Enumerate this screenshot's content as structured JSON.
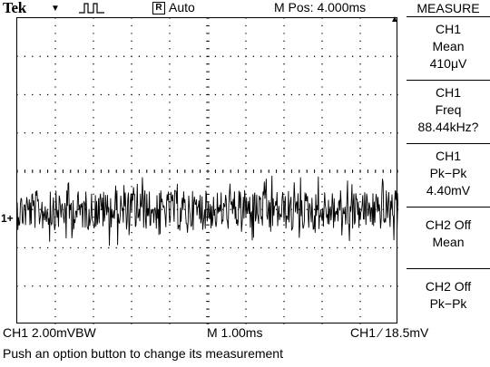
{
  "header": {
    "brand": "Tek",
    "run_status": "Auto",
    "run_icon": "R",
    "m_pos": "M Pos: 4.000ms",
    "acquisition_icon": "pulse-icon"
  },
  "menu": {
    "title": "MEASURE",
    "items": [
      {
        "source": "CH1",
        "type": "Mean",
        "value": "410μV"
      },
      {
        "source": "CH1",
        "type": "Freq",
        "value": "88.44kHz?"
      },
      {
        "source": "CH1",
        "type": "Pk−Pk",
        "value": "4.40mV"
      },
      {
        "source": "CH2 Off",
        "type": "Mean",
        "value": ""
      },
      {
        "source": "CH2 Off",
        "type": "Pk−Pk",
        "value": ""
      }
    ]
  },
  "footer": {
    "ch1_scale": "CH1  2.00mVBW",
    "timebase": "M 1.00ms",
    "trigger": "CH1 ⁄ 18.5mV",
    "hint": "Push an option button to change its measurement"
  },
  "screen": {
    "ch1_marker": "1+",
    "trace_color": "#000000"
  }
}
